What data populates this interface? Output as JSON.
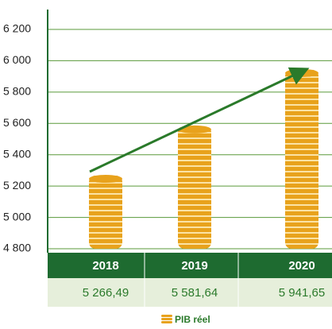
{
  "chart_data": {
    "type": "bar",
    "categories": [
      "2018",
      "2019",
      "2020"
    ],
    "series": [
      {
        "name": "PIB réel",
        "color": "#e8a21c",
        "values": [
          5266.49,
          5581.64,
          5941.65
        ],
        "value_labels": [
          "5 266,49",
          "5 581,64",
          "5 941,65"
        ]
      }
    ],
    "ylim": [
      4800,
      6200
    ],
    "yticks": [
      {
        "value": 4800,
        "label": "4 800"
      },
      {
        "value": 5000,
        "label": "5 000"
      },
      {
        "value": 5200,
        "label": "5 200"
      },
      {
        "value": 5400,
        "label": "5 400"
      },
      {
        "value": 5600,
        "label": "5 600"
      },
      {
        "value": 5800,
        "label": "5 800"
      },
      {
        "value": 6000,
        "label": "6 000"
      },
      {
        "value": 6200,
        "label": "6 200"
      }
    ],
    "grid": true
  }
}
